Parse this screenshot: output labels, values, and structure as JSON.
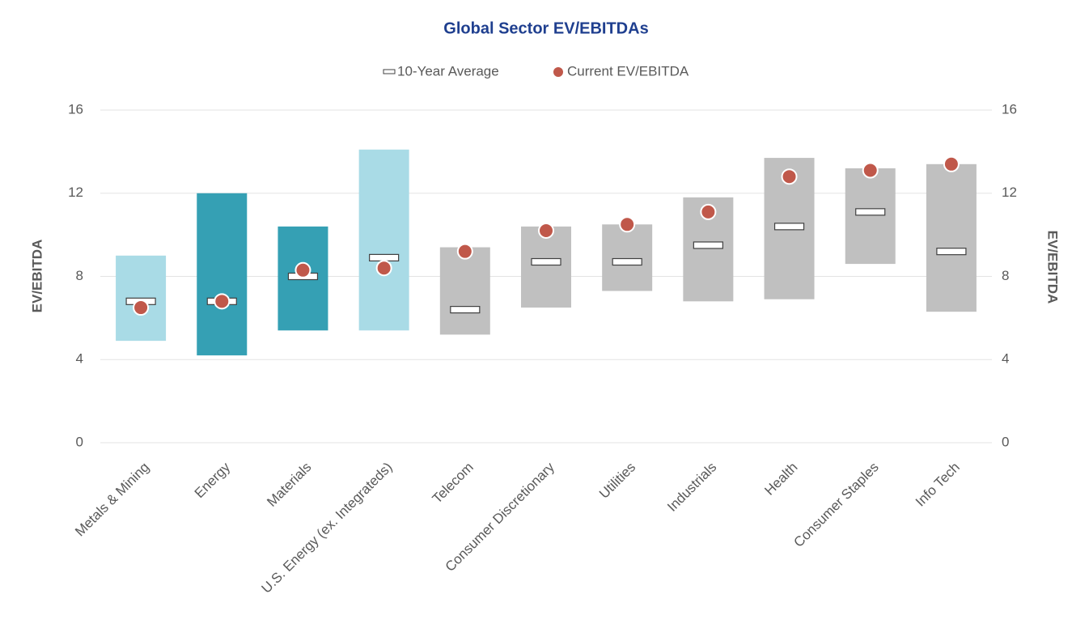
{
  "chart_data": {
    "type": "floating_bar",
    "title": "Global Sector EV/EBITDAs",
    "y_label": "EV/EBITDA",
    "y2_label": "EV/EBITDA",
    "categories": [
      "Metals & Mining",
      "Energy",
      "Materials",
      "U.S. Energy (ex. Integrateds)",
      "Telecom",
      "Consumer Discretionary",
      "Utilities",
      "Industrials",
      "Health",
      "Consumer Staples",
      "Info Tech"
    ],
    "ranges": {
      "low": [
        4.9,
        4.2,
        5.4,
        5.4,
        5.2,
        6.5,
        7.3,
        6.8,
        6.9,
        8.6,
        6.3
      ],
      "high": [
        9.0,
        12.0,
        10.4,
        14.1,
        9.4,
        10.4,
        10.5,
        11.8,
        13.7,
        13.2,
        13.4
      ],
      "colors": [
        "#a9dbe6",
        "#35a0b4",
        "#35a0b4",
        "#a9dbe6",
        "#c0c0c0",
        "#c0c0c0",
        "#c0c0c0",
        "#c0c0c0",
        "#c0c0c0",
        "#c0c0c0",
        "#c0c0c0"
      ]
    },
    "series": [
      {
        "name": "10-Year Average",
        "color": "#ffffff",
        "values": [
          6.8,
          6.8,
          8.0,
          8.9,
          6.4,
          8.7,
          8.7,
          9.5,
          10.4,
          11.1,
          9.2
        ]
      },
      {
        "name": "Current EV/EBITDA",
        "color": "#c0584a",
        "values": [
          6.5,
          6.8,
          8.3,
          8.4,
          9.2,
          10.2,
          10.5,
          11.1,
          12.8,
          13.1,
          13.4
        ]
      }
    ],
    "ylim": [
      0,
      16
    ],
    "yticks": [
      0,
      4,
      8,
      12,
      16
    ],
    "y2lim": [
      0,
      16
    ],
    "y2ticks": [
      0,
      4,
      8,
      12,
      16
    ],
    "grid": true
  }
}
